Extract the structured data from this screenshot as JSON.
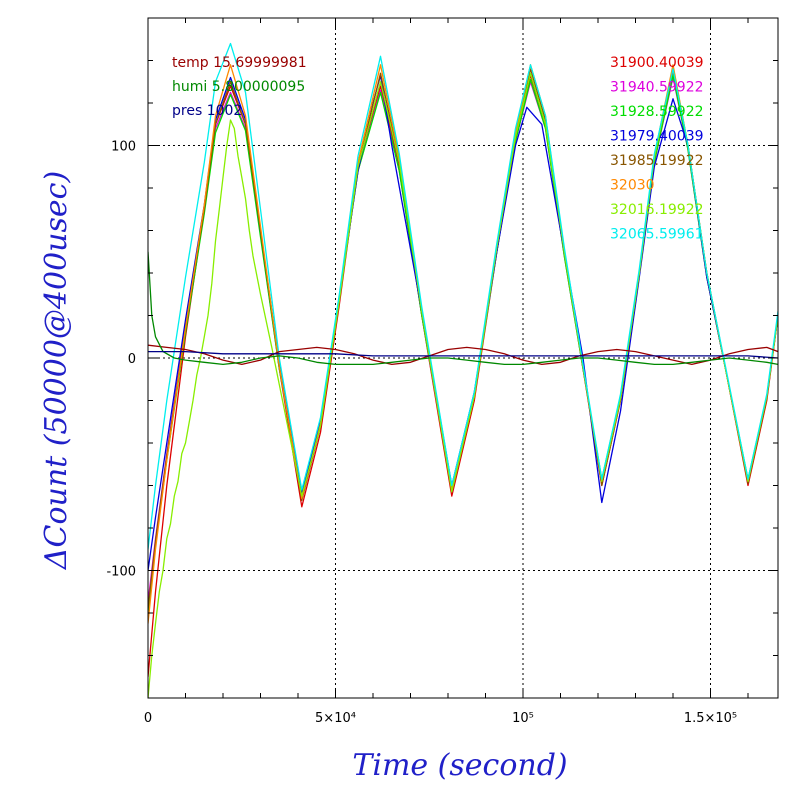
{
  "chart_data": {
    "type": "line",
    "title": "",
    "xlabel": "Time (second)",
    "ylabel": "ΔCount (50000@400usec)",
    "xlim": [
      0,
      168000
    ],
    "ylim": [
      -160,
      160
    ],
    "grid": true,
    "x_ticks": [
      {
        "value": 0,
        "label": "0"
      },
      {
        "value": 50000,
        "label": "5×10⁴"
      },
      {
        "value": 100000,
        "label": "10⁵"
      },
      {
        "value": 150000,
        "label": "1.5×10⁵"
      }
    ],
    "y_ticks": [
      {
        "value": 100,
        "label": "100"
      },
      {
        "value": 0,
        "label": "0"
      },
      {
        "value": -100,
        "label": "-100"
      }
    ],
    "legend_left": [
      {
        "label": "temp 15.69999981",
        "color": "#990000"
      },
      {
        "label": "humi 5.800000095",
        "color": "#008800"
      },
      {
        "label": "pres 1002",
        "color": "#000088"
      }
    ],
    "legend_right": [
      {
        "label": "31900.40039",
        "color": "#dd0000"
      },
      {
        "label": "31940.59922",
        "color": "#dd00dd"
      },
      {
        "label": "31928.59922",
        "color": "#00dd00"
      },
      {
        "label": "31979.40039",
        "color": "#0000dd"
      },
      {
        "label": "31985.19922",
        "color": "#885500"
      },
      {
        "label": "32030",
        "color": "#ff8800"
      },
      {
        "label": "32016.19922",
        "color": "#88ee00"
      },
      {
        "label": "32065.59961",
        "color": "#00eeee"
      }
    ],
    "series": [
      {
        "name": "31900.40039",
        "color": "#dd0000",
        "x": [
          0,
          2000,
          5000,
          10000,
          15000,
          18000,
          22000,
          26000,
          30000,
          35000,
          41000,
          46000,
          51000,
          56000,
          62000,
          67000,
          73000,
          81000,
          87000,
          93000,
          98000,
          102000,
          106000,
          111000,
          116000,
          121000,
          126000,
          131000,
          135000,
          140000,
          144000,
          149000,
          154000,
          160000,
          165000,
          168000
        ],
        "y": [
          -150,
          -110,
          -60,
          10,
          70,
          110,
          128,
          110,
          60,
          -5,
          -70,
          -35,
          25,
          90,
          128,
          90,
          20,
          -65,
          -20,
          50,
          105,
          133,
          110,
          50,
          -5,
          -60,
          -20,
          40,
          95,
          135,
          100,
          40,
          -5,
          -60,
          -20,
          20
        ]
      },
      {
        "name": "31940.59922",
        "color": "#dd00dd",
        "x": [
          0,
          2000,
          5000,
          10000,
          15000,
          18000,
          22000,
          26000,
          30000,
          35000,
          41000,
          46000,
          51000,
          56000,
          62000,
          67000,
          73000,
          81000,
          87000,
          93000,
          98000,
          102000,
          106000,
          111000,
          116000,
          121000,
          126000,
          131000,
          135000,
          140000,
          144000,
          149000,
          154000,
          160000,
          165000,
          168000
        ],
        "y": [
          -115,
          -85,
          -45,
          15,
          70,
          108,
          125,
          108,
          58,
          -5,
          -66,
          -30,
          28,
          88,
          126,
          88,
          20,
          -62,
          -18,
          50,
          102,
          130,
          108,
          48,
          -5,
          -58,
          -18,
          40,
          92,
          132,
          98,
          38,
          -5,
          -58,
          -18,
          20
        ]
      },
      {
        "name": "31928.59922",
        "color": "#00dd00",
        "x": [
          0,
          2000,
          5000,
          10000,
          15000,
          18000,
          22000,
          26000,
          30000,
          35000,
          41000,
          46000,
          51000,
          56000,
          62000,
          67000,
          73000,
          81000,
          87000,
          93000,
          98000,
          102000,
          106000,
          111000,
          116000,
          121000,
          126000,
          131000,
          135000,
          140000,
          144000,
          149000,
          154000,
          160000,
          165000,
          168000
        ],
        "y": [
          -120,
          -88,
          -48,
          12,
          68,
          106,
          124,
          107,
          57,
          -5,
          -64,
          -30,
          28,
          88,
          125,
          88,
          20,
          -61,
          -18,
          50,
          102,
          131,
          108,
          48,
          -5,
          -57,
          -18,
          40,
          92,
          133,
          98,
          38,
          -5,
          -57,
          -18,
          20
        ]
      },
      {
        "name": "31979.40039",
        "color": "#0000dd",
        "x": [
          0,
          2000,
          5000,
          10000,
          15000,
          18000,
          22000,
          26000,
          30000,
          35000,
          41000,
          46000,
          51000,
          56000,
          60000,
          62000,
          65000,
          73000,
          81000,
          87000,
          93000,
          98000,
          101000,
          105000,
          110000,
          116000,
          121000,
          126000,
          131000,
          135000,
          140000,
          144000,
          149000,
          154000,
          160000,
          165000,
          168000
        ],
        "y": [
          -100,
          -75,
          -40,
          18,
          72,
          112,
          132,
          112,
          60,
          -3,
          -64,
          -30,
          28,
          88,
          120,
          133,
          100,
          22,
          -60,
          -16,
          50,
          100,
          118,
          110,
          60,
          0,
          -68,
          -25,
          38,
          90,
          122,
          100,
          38,
          -5,
          -58,
          -18,
          20
        ]
      },
      {
        "name": "31985.19922",
        "color": "#885500",
        "x": [
          0,
          2000,
          5000,
          10000,
          15000,
          18000,
          22000,
          26000,
          30000,
          35000,
          41000,
          46000,
          51000,
          56000,
          62000,
          67000,
          73000,
          81000,
          87000,
          93000,
          98000,
          102000,
          106000,
          111000,
          116000,
          121000,
          126000,
          131000,
          135000,
          140000,
          144000,
          149000,
          154000,
          160000,
          165000,
          168000
        ],
        "y": [
          -118,
          -86,
          -46,
          14,
          70,
          110,
          130,
          110,
          60,
          -4,
          -67,
          -32,
          27,
          90,
          134,
          92,
          22,
          -63,
          -18,
          52,
          104,
          136,
          112,
          50,
          -4,
          -60,
          -20,
          40,
          94,
          137,
          100,
          40,
          -5,
          -59,
          -19,
          20
        ]
      },
      {
        "name": "32030",
        "color": "#ff8800",
        "x": [
          0,
          2000,
          5000,
          10000,
          15000,
          18000,
          22000,
          26000,
          30000,
          35000,
          41000,
          46000,
          51000,
          56000,
          62000,
          67000,
          73000,
          81000,
          87000,
          93000,
          98000,
          102000,
          106000,
          111000,
          116000,
          121000,
          126000,
          131000,
          135000,
          140000,
          144000,
          149000,
          154000,
          160000,
          165000,
          168000
        ],
        "y": [
          -125,
          -90,
          -48,
          14,
          72,
          114,
          138,
          114,
          62,
          -4,
          -66,
          -31,
          28,
          92,
          138,
          94,
          22,
          -62,
          -18,
          52,
          106,
          138,
          114,
          50,
          -4,
          -58,
          -19,
          40,
          95,
          138,
          100,
          40,
          -5,
          -58,
          -18,
          20
        ]
      },
      {
        "name": "32016.19922",
        "color": "#88ee00",
        "x": [
          0,
          1000,
          2000,
          3000,
          4000,
          5000,
          6000,
          7000,
          8000,
          9000,
          10000,
          11000,
          12000,
          13000,
          14000,
          15000,
          16000,
          17000,
          18000,
          19000,
          20000,
          21000,
          22000,
          23000,
          24000,
          25000,
          26000,
          27000,
          28000,
          30000,
          33000,
          37000,
          41000,
          46000,
          51000,
          56000,
          62000,
          67000,
          73000,
          81000,
          87000,
          93000,
          98000,
          102000,
          106000,
          111000,
          116000,
          121000,
          126000,
          131000,
          135000,
          140000,
          144000,
          149000,
          154000,
          160000,
          165000,
          168000
        ],
        "y": [
          -160,
          -140,
          -125,
          -110,
          -100,
          -85,
          -78,
          -65,
          -58,
          -45,
          -40,
          -30,
          -20,
          -8,
          0,
          10,
          20,
          35,
          55,
          70,
          85,
          100,
          112,
          108,
          95,
          85,
          75,
          60,
          48,
          30,
          5,
          -30,
          -65,
          -32,
          27,
          90,
          130,
          92,
          22,
          -63,
          -18,
          52,
          104,
          134,
          110,
          50,
          -4,
          -58,
          -19,
          40,
          94,
          136,
          100,
          40,
          -5,
          -58,
          -18,
          20
        ]
      },
      {
        "name": "32065.59961",
        "color": "#00eeee",
        "x": [
          0,
          2000,
          5000,
          10000,
          15000,
          18000,
          22000,
          26000,
          30000,
          35000,
          41000,
          46000,
          51000,
          56000,
          62000,
          67000,
          73000,
          81000,
          87000,
          93000,
          98000,
          102000,
          106000,
          111000,
          116000,
          121000,
          126000,
          131000,
          135000,
          140000,
          144000,
          149000,
          154000,
          160000,
          165000,
          168000
        ],
        "y": [
          -90,
          -60,
          -20,
          38,
          92,
          130,
          148,
          125,
          70,
          0,
          -62,
          -28,
          30,
          95,
          142,
          96,
          24,
          -60,
          -16,
          54,
          108,
          138,
          114,
          52,
          -3,
          -57,
          -17,
          42,
          96,
          136,
          100,
          40,
          -4,
          -57,
          -17,
          22
        ]
      },
      {
        "name": "temp 15.69999981",
        "color": "#990000",
        "x": [
          0,
          5000,
          10000,
          15000,
          20000,
          25000,
          30000,
          35000,
          40000,
          45000,
          50000,
          55000,
          60000,
          65000,
          70000,
          75000,
          80000,
          85000,
          90000,
          95000,
          100000,
          105000,
          110000,
          115000,
          120000,
          125000,
          130000,
          135000,
          140000,
          145000,
          150000,
          155000,
          160000,
          165000,
          168000
        ],
        "y": [
          6,
          5,
          4,
          2,
          -1,
          -3,
          -1,
          3,
          4,
          5,
          4,
          2,
          -1,
          -3,
          -2,
          1,
          4,
          5,
          4,
          2,
          -1,
          -3,
          -2,
          1,
          3,
          4,
          3,
          1,
          -1,
          -3,
          -1,
          2,
          4,
          5,
          3
        ]
      },
      {
        "name": "humi 5.800000095",
        "color": "#008800",
        "x": [
          0,
          1000,
          2000,
          4000,
          7000,
          10000,
          15000,
          20000,
          25000,
          30000,
          35000,
          40000,
          45000,
          50000,
          55000,
          60000,
          65000,
          70000,
          75000,
          80000,
          85000,
          90000,
          95000,
          100000,
          105000,
          110000,
          115000,
          120000,
          125000,
          130000,
          135000,
          140000,
          145000,
          150000,
          155000,
          160000,
          165000,
          168000
        ],
        "y": [
          50,
          20,
          10,
          3,
          0,
          -1,
          -2,
          -3,
          -2,
          0,
          1,
          0,
          -2,
          -3,
          -3,
          -3,
          -2,
          -1,
          0,
          0,
          -1,
          -2,
          -3,
          -3,
          -2,
          -1,
          0,
          0,
          -1,
          -2,
          -3,
          -3,
          -2,
          -1,
          0,
          -1,
          -2,
          -3
        ]
      },
      {
        "name": "pres 1002",
        "color": "#000088",
        "x": [
          0,
          10000,
          20000,
          30000,
          40000,
          50000,
          60000,
          70000,
          80000,
          90000,
          100000,
          110000,
          120000,
          130000,
          140000,
          150000,
          160000,
          168000
        ],
        "y": [
          3,
          3,
          2,
          2,
          2,
          2,
          1,
          1,
          1,
          1,
          1,
          1,
          1,
          1,
          1,
          1,
          1,
          0
        ]
      }
    ]
  }
}
